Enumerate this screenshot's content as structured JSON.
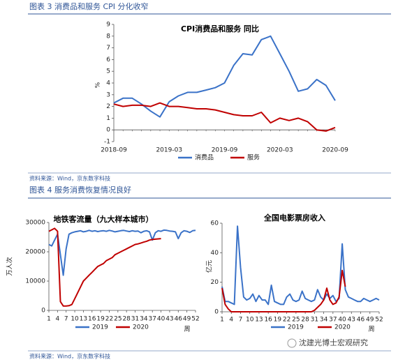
{
  "captions": [
    "图表 3 消费品和服务 CPI 分化收窄",
    "图表 4 服务消费恢复情况良好"
  ],
  "sources": [
    "资料来源：Wind，京东数字科技",
    "资料来源：Wind，京东数字科技"
  ],
  "watermark": "沈建光博士宏观研究",
  "chart_data": [
    {
      "type": "line",
      "title": "CPI消费品和服务 同比",
      "y_label": "%",
      "categories": [
        "2018-09",
        null,
        null,
        null,
        null,
        null,
        "2019-03",
        null,
        null,
        null,
        null,
        null,
        "2019-09",
        null,
        null,
        null,
        null,
        null,
        "2020-03",
        null,
        null,
        null,
        null,
        null,
        "2020-09"
      ],
      "ylim": [
        -1,
        9
      ],
      "yticks": [
        -1,
        0,
        1,
        2,
        3,
        4,
        5,
        6,
        7,
        8,
        9
      ],
      "series": [
        {
          "name": "消费品",
          "color": "#3a72c8",
          "values": [
            2.3,
            2.7,
            2.7,
            2.2,
            1.6,
            1.1,
            2.4,
            2.9,
            3.2,
            3.2,
            3.4,
            3.6,
            4.0,
            5.5,
            6.5,
            6.4,
            7.7,
            8.0,
            6.5,
            5.0,
            3.3,
            3.5,
            4.3,
            3.8,
            2.5
          ]
        },
        {
          "name": "服务",
          "color": "#c00000",
          "values": [
            2.2,
            2.0,
            2.1,
            2.1,
            2.0,
            2.3,
            2.0,
            2.0,
            1.9,
            1.8,
            1.8,
            1.7,
            1.5,
            1.3,
            1.2,
            1.2,
            1.5,
            0.6,
            1.0,
            0.8,
            1.0,
            0.7,
            0.0,
            -0.1,
            0.2
          ]
        }
      ]
    },
    {
      "type": "line",
      "title": "地铁客流量（九大样本城市）",
      "y_label": "万人次",
      "x_label": "周",
      "x": [
        1,
        2,
        3,
        4,
        5,
        6,
        7,
        8,
        9,
        10,
        11,
        12,
        13,
        14,
        15,
        16,
        17,
        18,
        19,
        20,
        21,
        22,
        23,
        24,
        25,
        26,
        27,
        28,
        29,
        30,
        31,
        32,
        33,
        34,
        35,
        36,
        37,
        38,
        39,
        40,
        41,
        42,
        43,
        44,
        45,
        46,
        47,
        48,
        49,
        50,
        51,
        52
      ],
      "xlim": [
        1,
        52
      ],
      "xticks": [
        1,
        4,
        7,
        10,
        13,
        16,
        19,
        22,
        25,
        28,
        31,
        34,
        37,
        40,
        43,
        46,
        49,
        52
      ],
      "ylim": [
        0,
        30000
      ],
      "yticks": [
        0,
        10000,
        20000,
        30000
      ],
      "series": [
        {
          "name": "2019",
          "color": "#3a72c8",
          "values": [
            22500,
            22000,
            24000,
            26000,
            19000,
            12000,
            21000,
            26000,
            26500,
            26800,
            27000,
            27200,
            26800,
            27000,
            27300,
            27000,
            27200,
            26900,
            27100,
            27200,
            27000,
            27300,
            27100,
            26800,
            27000,
            27200,
            27300,
            27100,
            26900,
            27200,
            27000,
            27100,
            26500,
            27000,
            27200,
            26800,
            24000,
            26500,
            27200,
            27000,
            27400,
            27300,
            27100,
            27000,
            26800,
            24500,
            26500,
            27200,
            27000,
            26600,
            27200,
            27300
          ]
        },
        {
          "name": "2020",
          "color": "#c00000",
          "values": [
            27000,
            27500,
            28000,
            27000,
            3000,
            1500,
            1500,
            1600,
            2000,
            4000,
            6000,
            8000,
            10000,
            11000,
            12000,
            13000,
            14000,
            15000,
            15500,
            16000,
            17000,
            17500,
            18000,
            19000,
            19500,
            20000,
            20500,
            21000,
            21500,
            22000,
            22500,
            22700,
            23000,
            23300,
            23600,
            24000,
            24200,
            24300,
            24400,
            24500,
            null,
            null,
            null,
            null,
            null,
            null,
            null,
            null,
            null,
            null,
            null,
            null
          ]
        }
      ]
    },
    {
      "type": "line",
      "title": "全国电影票房收入",
      "y_label": "亿元",
      "x_label": "周",
      "x": [
        1,
        2,
        3,
        4,
        5,
        6,
        7,
        8,
        9,
        10,
        11,
        12,
        13,
        14,
        15,
        16,
        17,
        18,
        19,
        20,
        21,
        22,
        23,
        24,
        25,
        26,
        27,
        28,
        29,
        30,
        31,
        32,
        33,
        34,
        35,
        36,
        37,
        38,
        39,
        40,
        41,
        42,
        43,
        44,
        45,
        46,
        47,
        48,
        49,
        50,
        51,
        52
      ],
      "xlim": [
        1,
        52
      ],
      "xticks": [
        1,
        4,
        7,
        10,
        13,
        16,
        19,
        22,
        25,
        28,
        31,
        34,
        37,
        40,
        43,
        46,
        49,
        52
      ],
      "ylim": [
        0,
        60
      ],
      "yticks": [
        0,
        20,
        40,
        60
      ],
      "series": [
        {
          "name": "2019",
          "color": "#3a72c8",
          "values": [
            17,
            7,
            7,
            6,
            5,
            58,
            30,
            10,
            8,
            9,
            12,
            7,
            11,
            8,
            8,
            5,
            18,
            7,
            6,
            5,
            5,
            10,
            12,
            8,
            7,
            8,
            14,
            9,
            8,
            7,
            8,
            15,
            10,
            8,
            12,
            9,
            11,
            7,
            9,
            46,
            15,
            10,
            9,
            8,
            7,
            7,
            9,
            8,
            7,
            8,
            9,
            8
          ]
        },
        {
          "name": "2020",
          "color": "#c00000",
          "values": [
            16,
            5,
            2,
            0,
            0,
            0,
            0,
            0,
            0,
            0,
            0,
            0,
            0,
            0,
            0,
            0,
            0,
            0,
            0,
            0,
            0,
            0,
            0,
            0,
            0,
            0,
            0,
            0,
            0,
            0,
            1,
            3,
            5,
            8,
            16,
            8,
            5,
            6,
            10,
            28,
            17,
            null,
            null,
            null,
            null,
            null,
            null,
            null,
            null,
            null,
            null,
            null
          ]
        }
      ]
    }
  ]
}
